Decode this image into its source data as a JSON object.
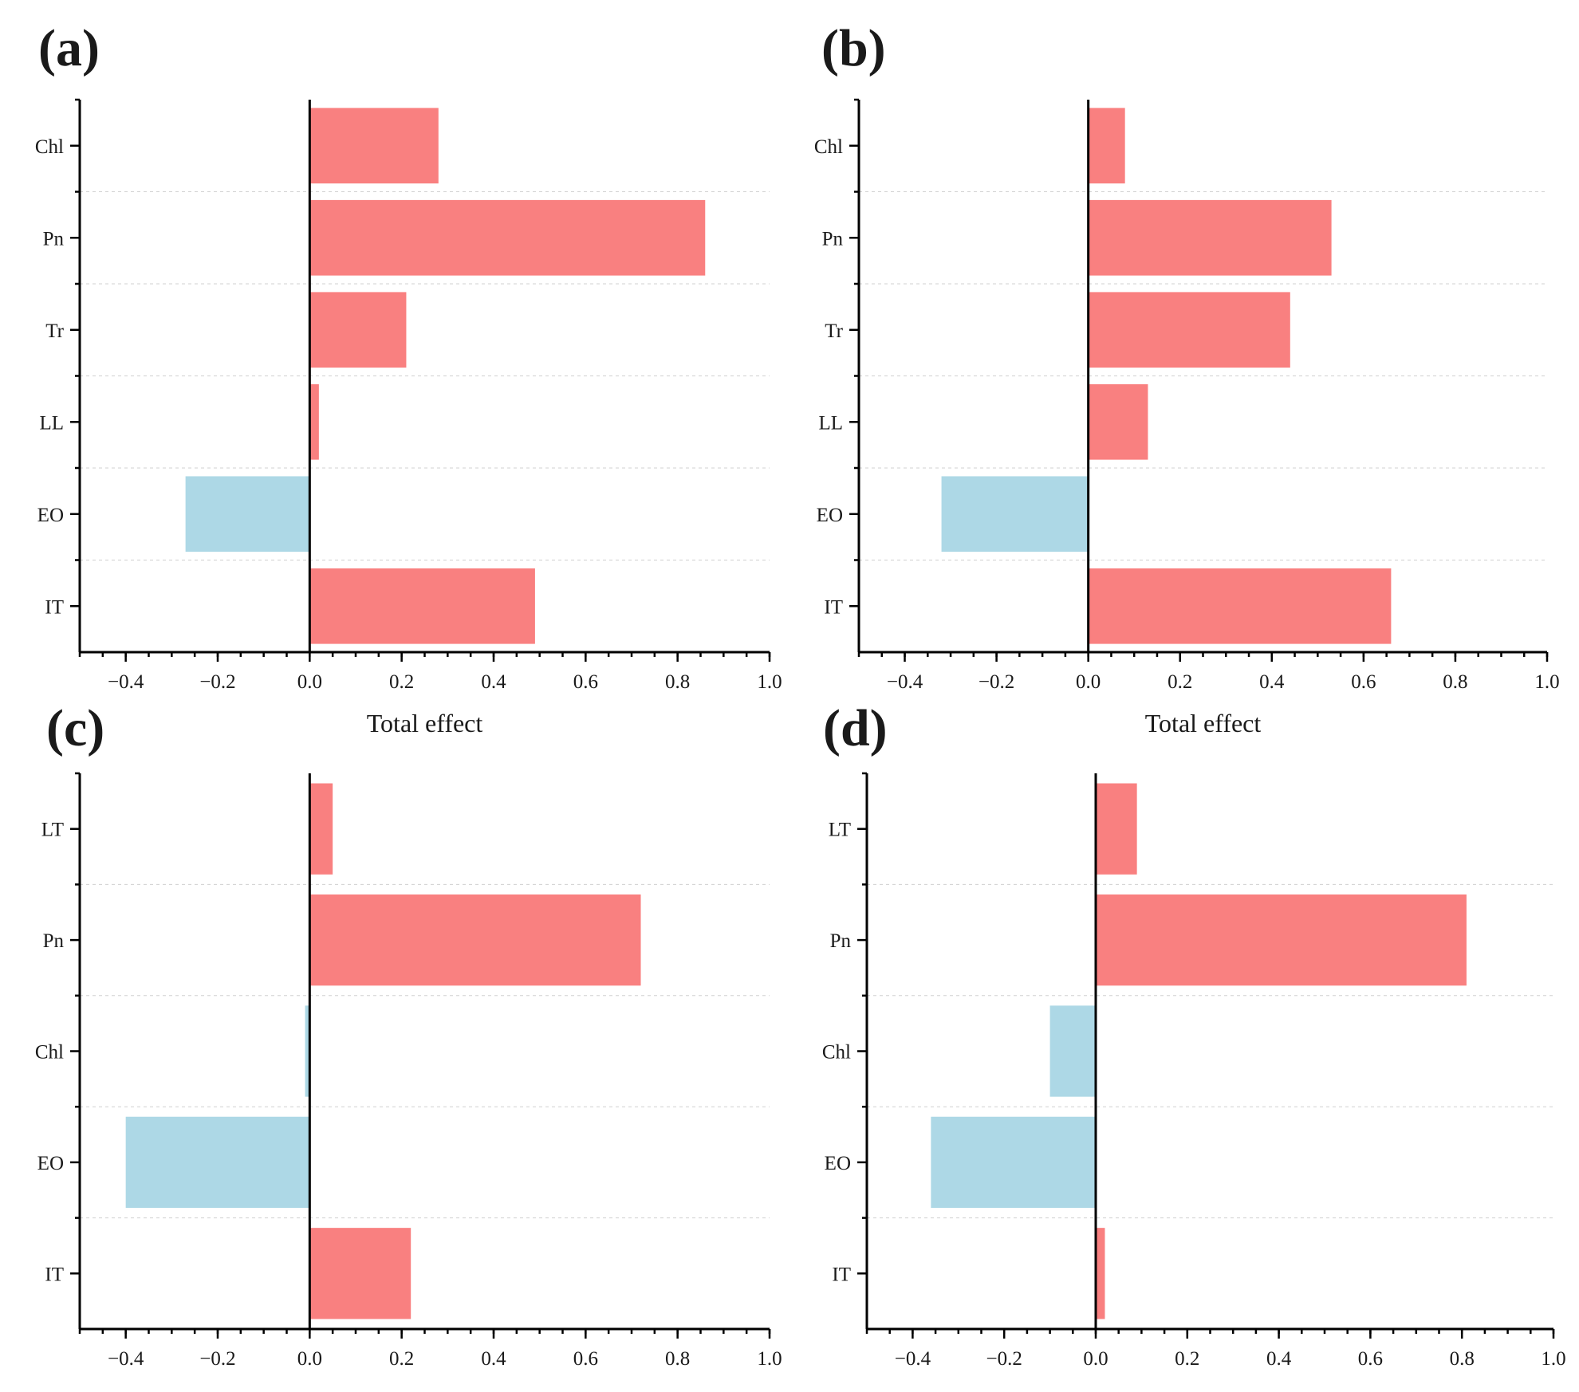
{
  "colors": {
    "positive": "#f98080",
    "negative": "#add8e6",
    "axis": "#000000"
  },
  "chart_data": [
    {
      "type": "bar",
      "orientation": "horizontal",
      "panel_label": "(a)",
      "categories": [
        "Chl",
        "Pn",
        "Tr",
        "LL",
        "EO",
        "IT"
      ],
      "values": [
        0.28,
        0.86,
        0.21,
        0.02,
        -0.27,
        0.49
      ],
      "xlabel": "Total effect",
      "xlim": [
        -0.5,
        1.0
      ],
      "xticks": [
        -0.4,
        -0.2,
        0.0,
        0.2,
        0.4,
        0.6,
        0.8,
        1.0
      ],
      "xtick_labels": [
        "−0.4",
        "−0.2",
        "0.0",
        "0.2",
        "0.4",
        "0.6",
        "0.8",
        "1.0"
      ],
      "grid": true
    },
    {
      "type": "bar",
      "orientation": "horizontal",
      "panel_label": "(b)",
      "categories": [
        "Chl",
        "Pn",
        "Tr",
        "LL",
        "EO",
        "IT"
      ],
      "values": [
        0.08,
        0.53,
        0.44,
        0.13,
        -0.32,
        0.66
      ],
      "xlabel": "Total effect",
      "xlim": [
        -0.5,
        1.0
      ],
      "xticks": [
        -0.4,
        -0.2,
        0.0,
        0.2,
        0.4,
        0.6,
        0.8,
        1.0
      ],
      "xtick_labels": [
        "−0.4",
        "−0.2",
        "0.0",
        "0.2",
        "0.4",
        "0.6",
        "0.8",
        "1.0"
      ],
      "grid": true
    },
    {
      "type": "bar",
      "orientation": "horizontal",
      "panel_label": "(c)",
      "categories": [
        "LT",
        "Pn",
        "Chl",
        "EO",
        "IT"
      ],
      "values": [
        0.05,
        0.72,
        -0.01,
        -0.4,
        0.22
      ],
      "xlabel": "",
      "xlim": [
        -0.5,
        1.0
      ],
      "xticks": [
        -0.4,
        -0.2,
        0.0,
        0.2,
        0.4,
        0.6,
        0.8,
        1.0
      ],
      "xtick_labels": [
        "−0.4",
        "−0.2",
        "0.0",
        "0.2",
        "0.4",
        "0.6",
        "0.8",
        "1.0"
      ],
      "grid": true
    },
    {
      "type": "bar",
      "orientation": "horizontal",
      "panel_label": "(d)",
      "categories": [
        "LT",
        "Pn",
        "Chl",
        "EO",
        "IT"
      ],
      "values": [
        0.09,
        0.81,
        -0.1,
        -0.36,
        0.02
      ],
      "xlabel": "",
      "xlim": [
        -0.5,
        1.0
      ],
      "xticks": [
        -0.4,
        -0.2,
        0.0,
        0.2,
        0.4,
        0.6,
        0.8,
        1.0
      ],
      "xtick_labels": [
        "−0.4",
        "−0.2",
        "0.0",
        "0.2",
        "0.4",
        "0.6",
        "0.8",
        "1.0"
      ],
      "grid": true
    }
  ]
}
